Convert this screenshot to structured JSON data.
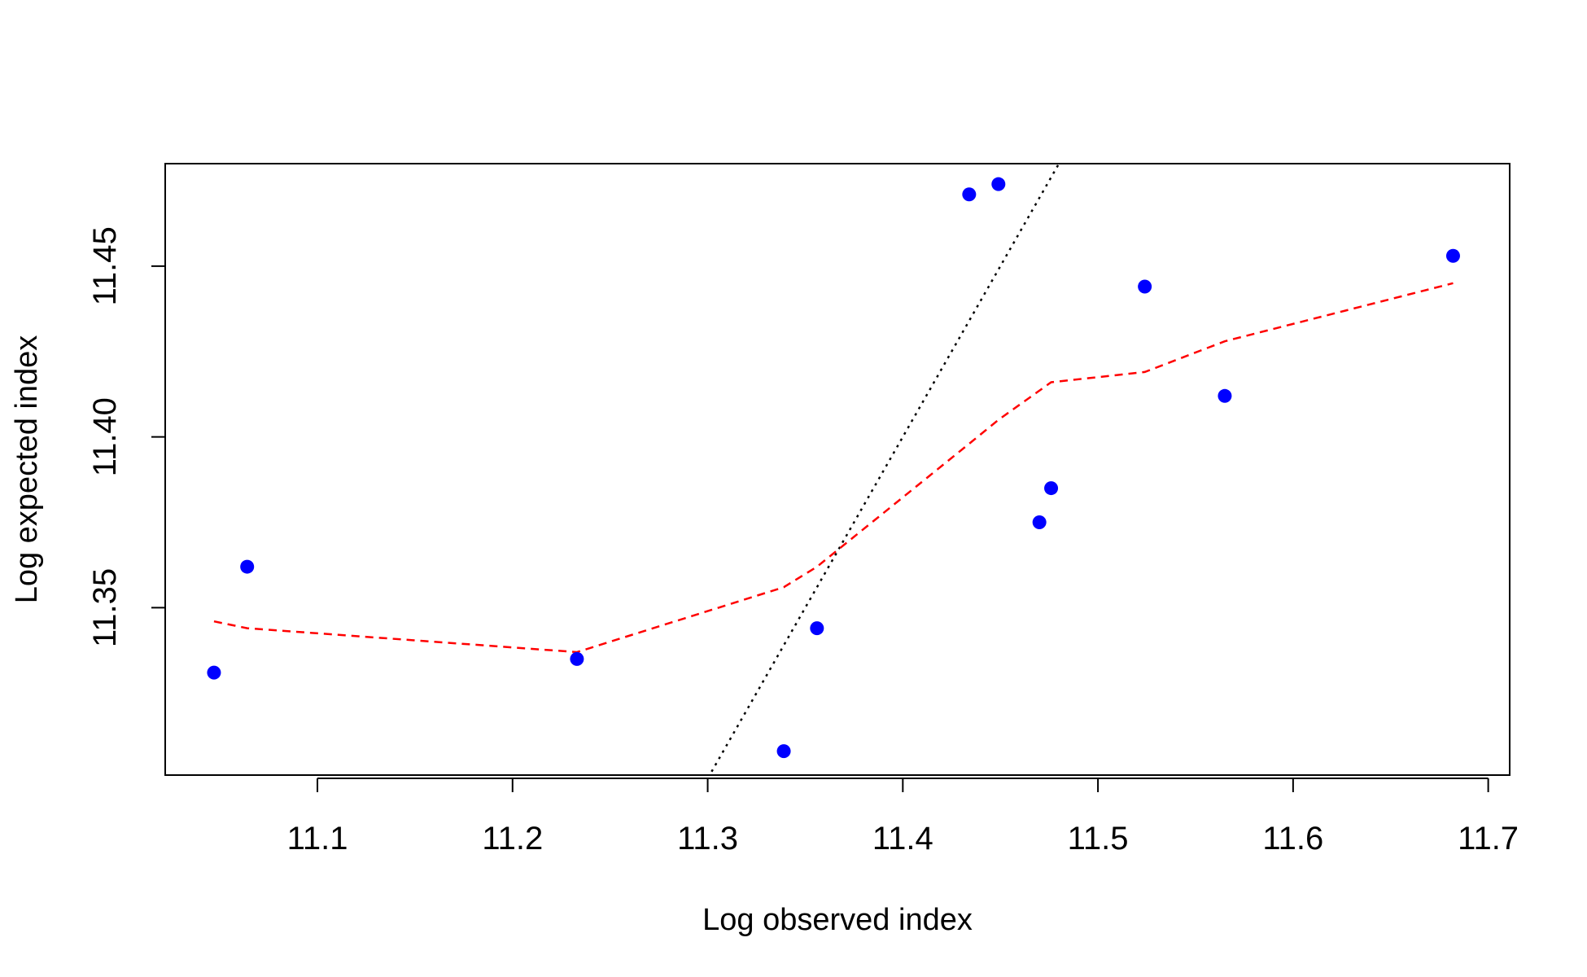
{
  "chart_data": {
    "type": "scatter",
    "title": "",
    "xlabel": "Log observed index",
    "ylabel": "Log expected index",
    "xlim": [
      11.022,
      11.711
    ],
    "ylim": [
      11.301,
      11.48
    ],
    "x_ticks": [
      11.1,
      11.2,
      11.3,
      11.4,
      11.5,
      11.6,
      11.7
    ],
    "x_tick_labels": [
      "11.1",
      "11.2",
      "11.3",
      "11.4",
      "11.5",
      "11.6",
      "11.7"
    ],
    "y_ticks": [
      11.35,
      11.4,
      11.45
    ],
    "y_tick_labels": [
      "11.35",
      "11.40",
      "11.45"
    ],
    "points": {
      "color": "#0000ff",
      "x": [
        11.047,
        11.064,
        11.233,
        11.339,
        11.356,
        11.434,
        11.449,
        11.47,
        11.476,
        11.524,
        11.565,
        11.682
      ],
      "y": [
        11.331,
        11.362,
        11.335,
        11.308,
        11.344,
        11.471,
        11.474,
        11.375,
        11.385,
        11.444,
        11.412,
        11.453
      ]
    },
    "identity_line": {
      "color": "#000000",
      "style": "dotted",
      "x": [
        11.302,
        11.48
      ],
      "y": [
        11.302,
        11.48
      ]
    },
    "smooth_line": {
      "color": "#ff0000",
      "style": "dashed",
      "x": [
        11.047,
        11.064,
        11.233,
        11.339,
        11.356,
        11.434,
        11.449,
        11.476,
        11.524,
        11.565,
        11.682
      ],
      "y": [
        11.346,
        11.344,
        11.337,
        11.356,
        11.362,
        11.398,
        11.405,
        11.416,
        11.419,
        11.428,
        11.445
      ]
    }
  }
}
